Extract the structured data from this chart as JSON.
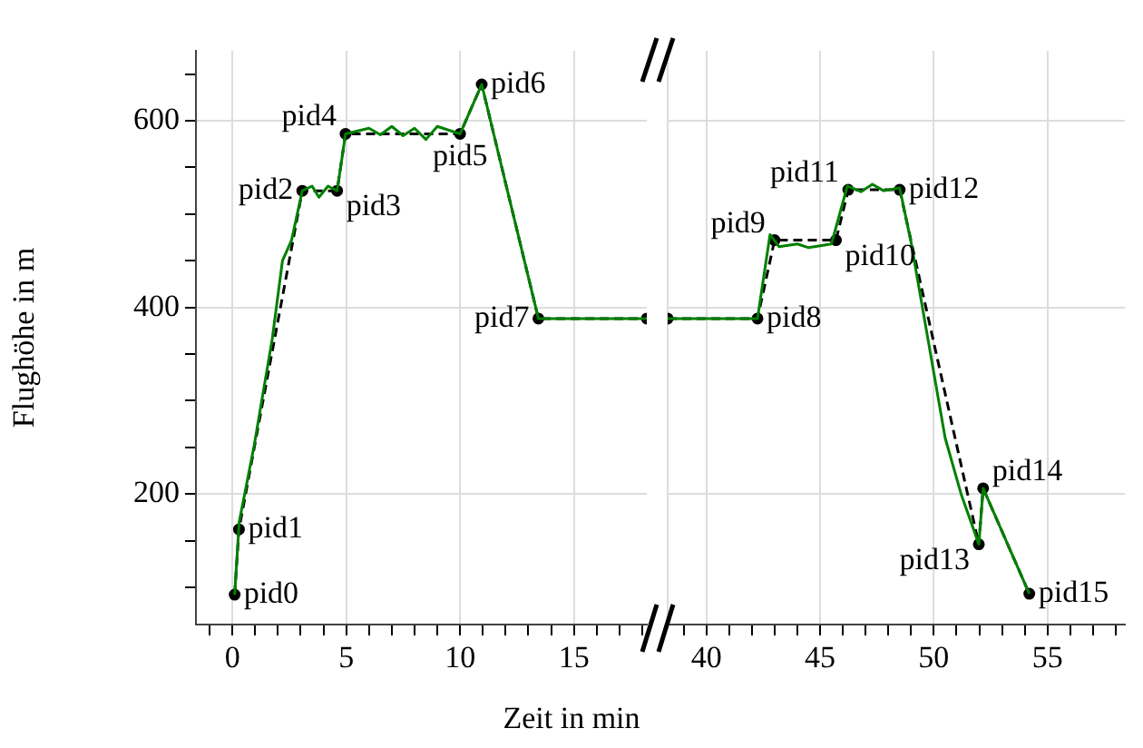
{
  "chart_data": [
    {
      "type": "line",
      "ylabel": "Flughöhe in m",
      "xlabel": "Zeit in min",
      "grid": true,
      "legend": false,
      "xlim": [
        -1.6,
        18.2
      ],
      "ylim": [
        60,
        675
      ],
      "xticks": [
        {
          "value": -1,
          "label": null
        },
        0,
        {
          "value": 1,
          "label": null
        },
        {
          "value": 2,
          "label": null
        },
        {
          "value": 3,
          "label": null
        },
        {
          "value": 4,
          "label": null
        },
        5,
        {
          "value": 6,
          "label": null
        },
        {
          "value": 7,
          "label": null
        },
        {
          "value": 8,
          "label": null
        },
        {
          "value": 9,
          "label": null
        },
        10,
        {
          "value": 11,
          "label": null
        },
        {
          "value": 12,
          "label": null
        },
        {
          "value": 13,
          "label": null
        },
        {
          "value": 14,
          "label": null
        },
        15,
        {
          "value": 16,
          "label": null
        },
        {
          "value": 17,
          "label": null
        },
        {
          "value": 18,
          "label": null
        }
      ],
      "yticks": [
        {
          "value": 100,
          "label": null
        },
        {
          "value": 150,
          "label": null
        },
        200,
        {
          "value": 250,
          "label": null
        },
        {
          "value": 300,
          "label": null
        },
        {
          "value": 350,
          "label": null
        },
        400,
        {
          "value": 450,
          "label": null
        },
        {
          "value": 500,
          "label": null
        },
        {
          "value": 550,
          "label": null
        },
        600,
        {
          "value": 650,
          "label": null
        }
      ],
      "series": [
        {
          "color": "#008000",
          "marker": "none",
          "line_style": "solid",
          "x": [
            0.1,
            0.3,
            0.95,
            1.75,
            2.2,
            2.6,
            3.07,
            3.5,
            3.8,
            4.2,
            4.6,
            4.97,
            6,
            6.5,
            7,
            7.5,
            8,
            8.5,
            9,
            10,
            10.95,
            13.44,
            18.2
          ],
          "values": [
            92,
            170,
            251,
            366,
            450,
            472,
            525,
            530,
            518,
            530,
            525,
            586,
            592,
            585,
            594,
            584,
            592,
            580,
            594,
            586,
            639,
            388,
            388
          ]
        },
        {
          "color": "#000000",
          "marker": "circle",
          "line_style": "dashed",
          "x": [
            0.1,
            0.29,
            3.07,
            4.6,
            4.97,
            10,
            10.95,
            13.44,
            18.2
          ],
          "values": [
            92,
            162,
            525,
            525,
            586,
            586,
            639,
            388,
            388
          ]
        }
      ],
      "annotations": [
        {
          "text": "pid0",
          "x": 0.1,
          "y": 92
        },
        {
          "text": "pid1",
          "x": 0.29,
          "y": 162
        },
        {
          "text": "pid2",
          "x": 3.07,
          "y": 525
        },
        {
          "text": "pid3",
          "x": 4.6,
          "y": 525
        },
        {
          "text": "pid4",
          "x": 4.97,
          "y": 586
        },
        {
          "text": "pid5",
          "x": 10,
          "y": 586
        },
        {
          "text": "pid6",
          "x": 10.95,
          "y": 639
        },
        {
          "text": "pid7",
          "x": 13.44,
          "y": 388
        }
      ]
    },
    {
      "type": "line",
      "grid": true,
      "legend": false,
      "tick_labels": "x",
      "xlim": [
        38.3,
        58.4
      ],
      "ylim": [
        60,
        675
      ],
      "xticks": [
        {
          "value": 39,
          "label": null
        },
        40,
        {
          "value": 41,
          "label": null
        },
        {
          "value": 42,
          "label": null
        },
        {
          "value": 43,
          "label": null
        },
        {
          "value": 44,
          "label": null
        },
        45,
        {
          "value": 46,
          "label": null
        },
        {
          "value": 47,
          "label": null
        },
        {
          "value": 48,
          "label": null
        },
        {
          "value": 49,
          "label": null
        },
        50,
        {
          "value": 51,
          "label": null
        },
        {
          "value": 52,
          "label": null
        },
        {
          "value": 53,
          "label": null
        },
        {
          "value": 54,
          "label": null
        },
        55,
        {
          "value": 56,
          "label": null
        },
        {
          "value": 57,
          "label": null
        },
        {
          "value": 58,
          "label": null
        }
      ],
      "yticks": [
        200,
        400,
        600
      ],
      "series": [
        {
          "color": "#008000",
          "marker": "none",
          "line_style": "solid",
          "x": [
            38.3,
            42.25,
            42.8,
            43.2,
            44,
            44.5,
            45.5,
            46.2,
            46.8,
            47.3,
            47.8,
            48.5,
            49,
            50,
            50.5,
            51.2,
            51.98,
            52.17,
            54.2
          ],
          "values": [
            388,
            388,
            478,
            465,
            468,
            464,
            468,
            530,
            524,
            532,
            525,
            528,
            470,
            330,
            260,
            200,
            146,
            206,
            93
          ]
        },
        {
          "color": "#000000",
          "marker": "circle",
          "line_style": "dashed",
          "x": [
            38.3,
            42.25,
            43,
            45.7,
            46.24,
            48.5,
            51.98,
            52.17,
            54.2
          ],
          "values": [
            388,
            388,
            472,
            472,
            526,
            526,
            146,
            206,
            93
          ]
        }
      ],
      "annotations": [
        {
          "text": "pid8",
          "x": 42.25,
          "y": 388
        },
        {
          "text": "pid9",
          "x": 43,
          "y": 472
        },
        {
          "text": "pid10",
          "x": 45.7,
          "y": 472
        },
        {
          "text": "pid11",
          "x": 46.24,
          "y": 526
        },
        {
          "text": "pid12",
          "x": 48.5,
          "y": 526
        },
        {
          "text": "pid13",
          "x": 51.98,
          "y": 146
        },
        {
          "text": "pid14",
          "x": 52.17,
          "y": 206
        },
        {
          "text": "pid15",
          "x": 54.2,
          "y": 93
        }
      ]
    }
  ]
}
